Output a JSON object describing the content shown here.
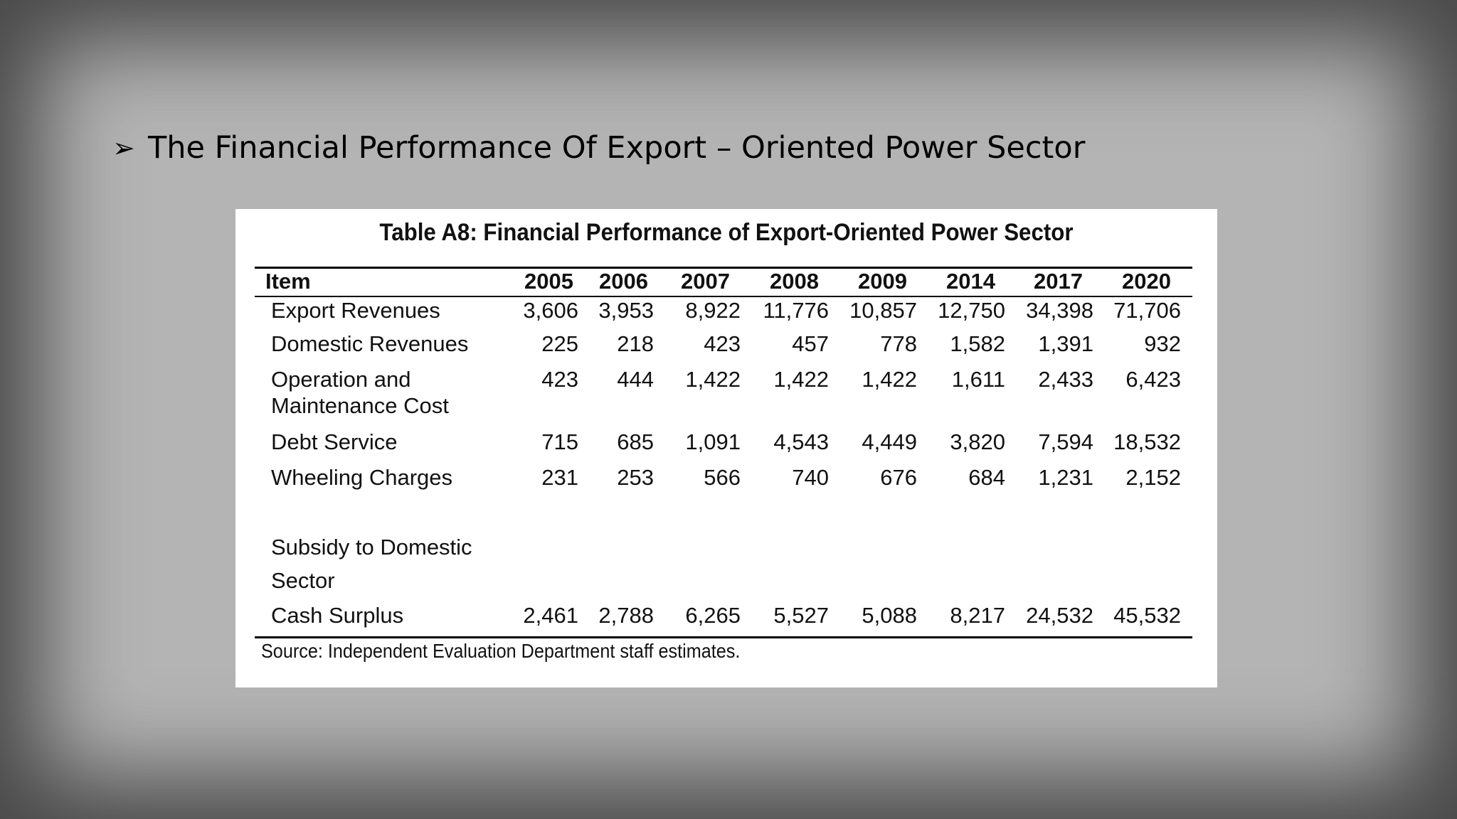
{
  "slide": {
    "bullet_glyph": "➢",
    "heading": "The Financial Performance Of Export – Oriented Power Sector"
  },
  "table": {
    "title": "Table A8: Financial Performance of Export-Oriented Power Sector",
    "columns": [
      "Item",
      "2005",
      "2006",
      "2007",
      "2008",
      "2009",
      "2014",
      "2017",
      "2020"
    ],
    "rows": [
      {
        "item": "Export Revenues",
        "values": [
          "3,606",
          "3,953",
          "8,922",
          "11,776",
          "10,857",
          "12,750",
          "34,398",
          "71,706"
        ]
      },
      {
        "item": "Domestic Revenues",
        "values": [
          "225",
          "218",
          "423",
          "457",
          "778",
          "1,582",
          "1,391",
          "932"
        ]
      },
      {
        "item_line1": "Operation and",
        "item_line2": "Maintenance Cost",
        "values": [
          "423",
          "444",
          "1,422",
          "1,422",
          "1,422",
          "1,611",
          "2,433",
          "6,423"
        ]
      },
      {
        "item": "Debt Service",
        "values": [
          "715",
          "685",
          "1,091",
          "4,543",
          "4,449",
          "3,820",
          "7,594",
          "18,532"
        ]
      },
      {
        "item": "Wheeling Charges",
        "values": [
          "231",
          "253",
          "566",
          "740",
          "676",
          "684",
          "1,231",
          "2,152"
        ]
      },
      {
        "item_line1": "Subsidy to Domestic",
        "item_line2": "Sector",
        "values": []
      },
      {
        "item": "Cash Surplus",
        "values": [
          "2,461",
          "2,788",
          "6,265",
          "5,527",
          "5,088",
          "8,217",
          "24,532",
          "45,532"
        ]
      }
    ],
    "source": "Source: Independent Evaluation Department staff estimates."
  }
}
